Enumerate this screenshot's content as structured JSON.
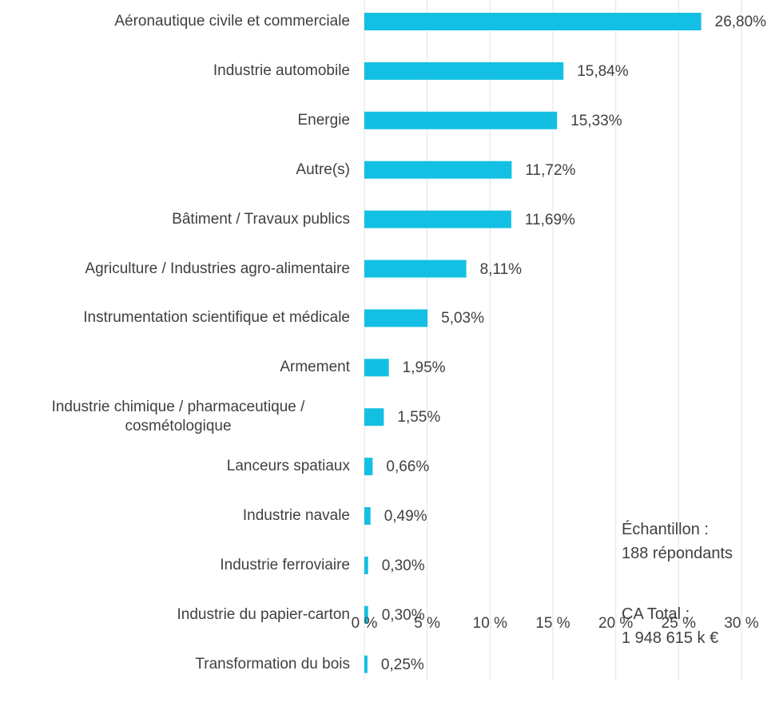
{
  "chart_data": {
    "type": "bar",
    "orientation": "horizontal",
    "categories": [
      "Aéronautique civile et commerciale",
      "Industrie automobile",
      "Energie",
      "Autre(s)",
      "Bâtiment / Travaux publics",
      "Agriculture / Industries agro-alimentaire",
      "Instrumentation scientifique et médicale",
      "Armement",
      "Industrie chimique / pharmaceutique / cosmétologique",
      "Lanceurs spatiaux",
      "Industrie navale",
      "Industrie ferroviaire",
      "Industrie du papier-carton",
      "Transformation du bois"
    ],
    "values": [
      26.8,
      15.84,
      15.33,
      11.72,
      11.69,
      8.11,
      5.03,
      1.95,
      1.55,
      0.66,
      0.49,
      0.3,
      0.3,
      0.25
    ],
    "value_labels": [
      "26,80%",
      "15,84%",
      "15,33%",
      "11,72%",
      "11,69%",
      "8,11%",
      "5,03%",
      "1,95%",
      "1,55%",
      "0,66%",
      "0,49%",
      "0,30%",
      "0,30%",
      "0,25%"
    ],
    "color": "#13c0e3",
    "xlim": [
      0,
      30
    ],
    "xticks": [
      {
        "value": 0,
        "label": "0 %"
      },
      {
        "value": 5,
        "label": "5 %"
      },
      {
        "value": 10,
        "label": "10 %"
      },
      {
        "value": 15,
        "label": "15 %"
      },
      {
        "value": 20,
        "label": "20 %"
      },
      {
        "value": 25,
        "label": "25 %"
      },
      {
        "value": 30,
        "label": "30 %"
      }
    ],
    "grid": true,
    "annotations": [
      "Échantillon :\n188 répondants",
      "CA Total :\n1 948 615 k €"
    ]
  }
}
